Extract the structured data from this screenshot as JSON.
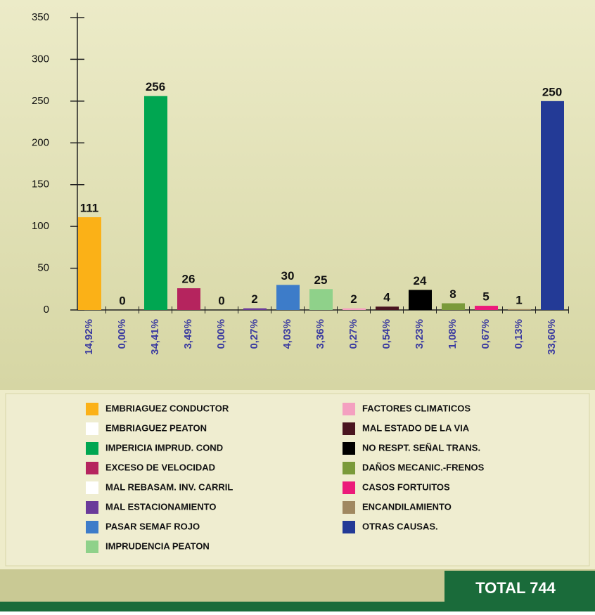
{
  "chart_data": {
    "type": "bar",
    "categories": [
      "EMBRIAGUEZ CONDUCTOR",
      "EMBRIAGUEZ PEATON",
      "IMPERICIA IMPRUD. COND",
      "EXCESO DE VELOCIDAD",
      "MAL REBASAM. INV. CARRIL",
      "MAL ESTACIONAMIENTO",
      "PASAR SEMAF ROJO",
      "IMPRUDENCIA PEATON",
      "FACTORES CLIMATICOS",
      "MAL ESTADO DE LA VIA",
      "NO RESPT. SEÑAL TRANS.",
      "DAÑOS MECANIC.-FRENOS",
      "CASOS FORTUITOS",
      "ENCANDILAMIENTO",
      "OTRAS CAUSAS."
    ],
    "values": [
      111,
      0,
      256,
      26,
      0,
      2,
      30,
      25,
      2,
      4,
      24,
      8,
      5,
      1,
      250
    ],
    "percentages": [
      14.92,
      0,
      34.41,
      3.49,
      0,
      0.27,
      4.03,
      3.36,
      0.27,
      0.54,
      3.23,
      1.08,
      0.67,
      0.13,
      33.6
    ],
    "percentage_labels": [
      "14,92%",
      "0,00%",
      "34,41%",
      "3,49%",
      "0,00%",
      "0,27%",
      "4,03%",
      "3,36%",
      "0,27%",
      "0,54%",
      "3,23%",
      "1,08%",
      "0,67%",
      "0,13%",
      "33,60%"
    ],
    "colors": [
      "#fbb117",
      "#ffffff",
      "#00a651",
      "#b5245e",
      "#ffffff",
      "#6a3a9a",
      "#3d7cc9",
      "#8fd18a",
      "#f4a0c0",
      "#4a1520",
      "#000000",
      "#7a9a3a",
      "#ec1a7a",
      "#a08860",
      "#233a96"
    ],
    "ylim": [
      0,
      350
    ],
    "yticks": [
      0,
      50,
      100,
      150,
      200,
      250,
      300,
      350
    ],
    "total": "TOTAL 744"
  }
}
